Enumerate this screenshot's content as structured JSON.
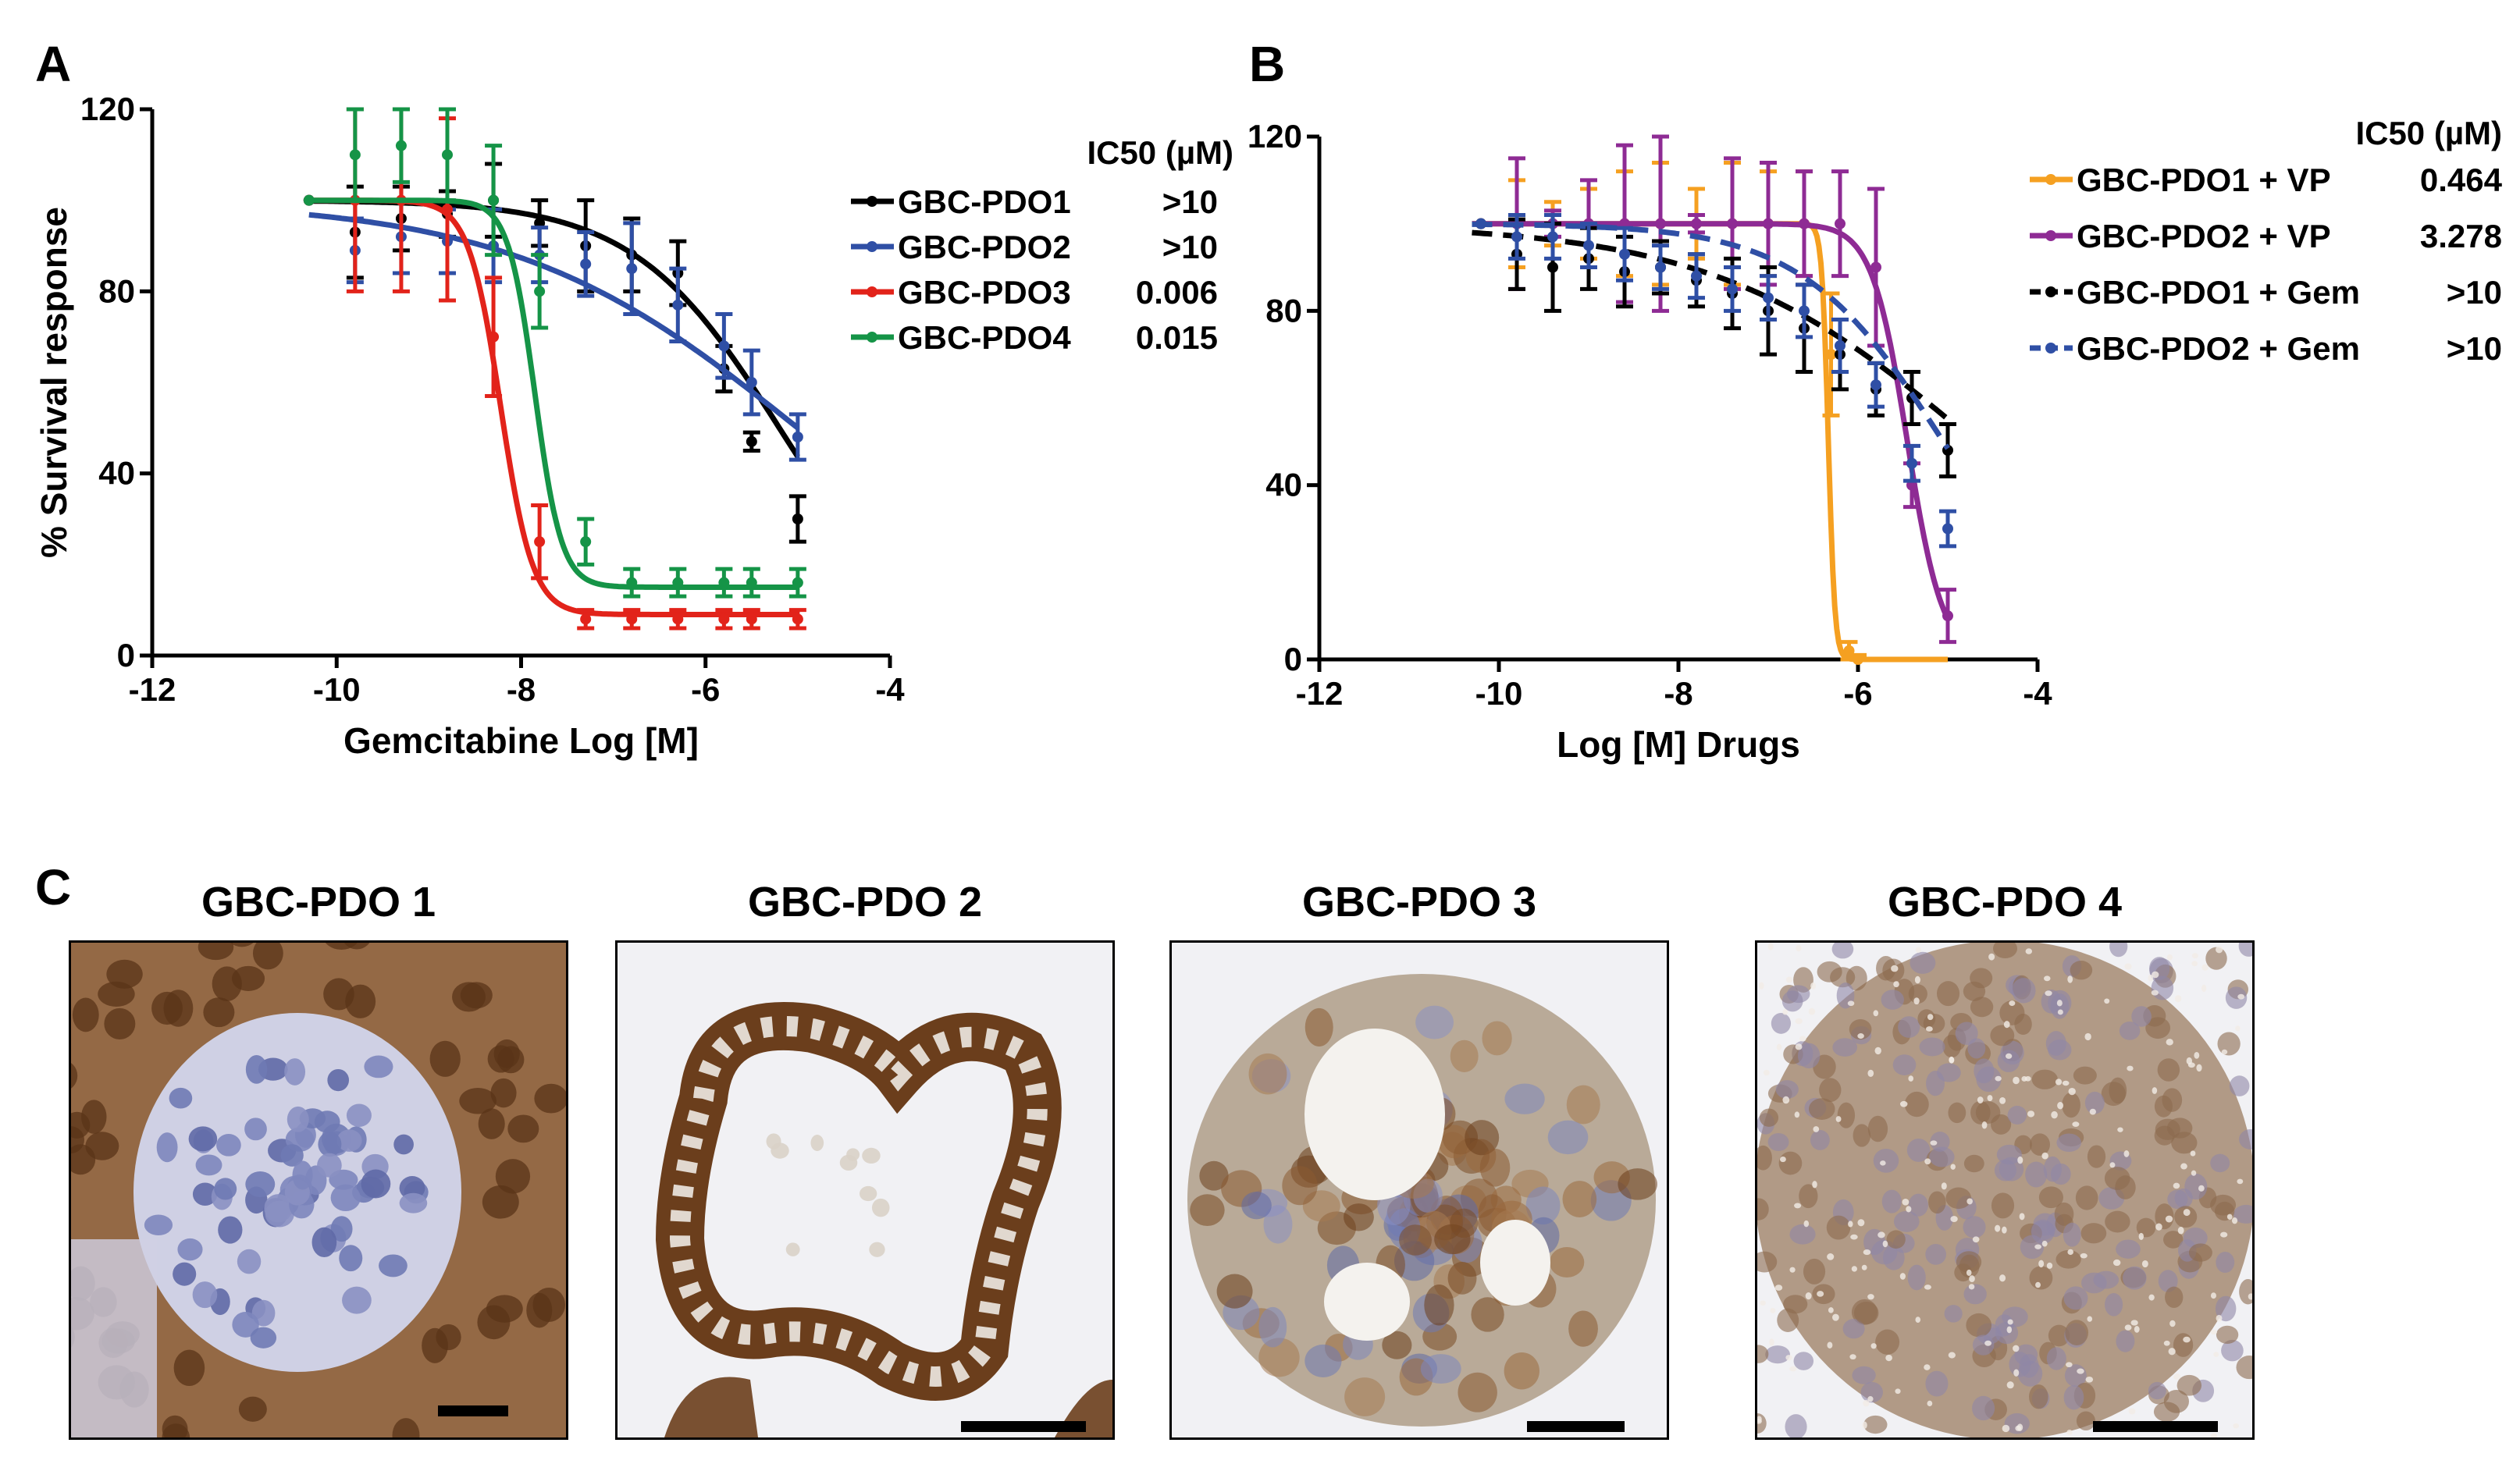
{
  "panel_letters": {
    "a": "A",
    "b": "B",
    "c": "C"
  },
  "chart_data": [
    {
      "type": "line",
      "panel": "A",
      "ylabel": "% Survival response",
      "xlabel": "Gemcitabine Log [M]",
      "xlim": [
        -12,
        -4
      ],
      "ylim": [
        0,
        120
      ],
      "xticks": [
        "-12",
        "-10",
        "-8",
        "-6",
        "-4"
      ],
      "yticks": [
        "0",
        "40",
        "80",
        "120"
      ],
      "legend_header": "IC50 (µM)",
      "legend_position": "right",
      "series": [
        {
          "name": "GBC-PDO1",
          "ic50": ">10",
          "color": "#000000",
          "dash": false,
          "x": [
            -10.3,
            -9.8,
            -9.3,
            -8.8,
            -8.3,
            -7.8,
            -7.3,
            -6.8,
            -6.3,
            -5.8,
            -5.5,
            -5.0
          ],
          "y": [
            100,
            93,
            96,
            97,
            100,
            95,
            90,
            88,
            84,
            63,
            47,
            30
          ],
          "err": [
            0,
            10,
            7,
            5,
            8,
            5,
            10,
            8,
            7,
            5,
            2,
            5
          ],
          "fit": {
            "bottom": 0,
            "top": 100,
            "logec50": -5.2,
            "hill": -0.55
          }
        },
        {
          "name": "GBC-PDO2",
          "ic50": ">10",
          "color": "#2f4fa5",
          "dash": false,
          "x": [
            -10.3,
            -9.8,
            -9.3,
            -8.8,
            -8.3,
            -7.8,
            -7.3,
            -6.8,
            -6.3,
            -5.8,
            -5.5,
            -5.0
          ],
          "y": [
            100,
            89,
            92,
            91,
            90,
            88,
            86,
            85,
            77,
            68,
            60,
            48
          ],
          "err": [
            0,
            7,
            8,
            7,
            8,
            6,
            7,
            10,
            8,
            7,
            7,
            5
          ],
          "fit": {
            "bottom": 0,
            "top": 100,
            "logec50": -5.0,
            "hill": -0.28
          }
        },
        {
          "name": "GBC-PDO3",
          "ic50": "0.006",
          "color": "#e2231a",
          "dash": false,
          "x": [
            -10.3,
            -9.8,
            -9.3,
            -8.8,
            -8.3,
            -7.8,
            -7.3,
            -6.8,
            -6.3,
            -5.8,
            -5.5,
            -5.0
          ],
          "y": [
            100,
            100,
            100,
            98,
            70,
            25,
            8,
            8,
            8,
            8,
            8,
            8
          ],
          "err": [
            0,
            20,
            20,
            20,
            13,
            8,
            2,
            2,
            2,
            2,
            2,
            2
          ],
          "fit": {
            "bottom": 9,
            "top": 100,
            "logec50": -8.22,
            "hill": -2.5
          }
        },
        {
          "name": "GBC-PDO4",
          "ic50": "0.015",
          "color": "#159447",
          "dash": false,
          "x": [
            -10.3,
            -9.8,
            -9.3,
            -8.8,
            -8.3,
            -7.8,
            -7.3,
            -6.8,
            -6.3,
            -5.8,
            -5.5,
            -5.0
          ],
          "y": [
            100,
            110,
            112,
            110,
            100,
            80,
            25,
            16,
            16,
            16,
            16,
            16
          ],
          "err": [
            0,
            10,
            8,
            10,
            12,
            8,
            5,
            3,
            3,
            3,
            3,
            3
          ],
          "fit": {
            "bottom": 15,
            "top": 100,
            "logec50": -7.85,
            "hill": -3
          }
        }
      ]
    },
    {
      "type": "line",
      "panel": "B",
      "ylabel": "% Survival response",
      "xlabel": "Log [M] Drugs",
      "xlim": [
        -12,
        -4
      ],
      "ylim": [
        0,
        120
      ],
      "xticks": [
        "-12",
        "-10",
        "-8",
        "-6",
        "-4"
      ],
      "yticks": [
        "0",
        "40",
        "80",
        "120"
      ],
      "legend_header": "IC50 (µM)",
      "legend_position": "top-right",
      "series": [
        {
          "name": "GBC-PDO1 + VP",
          "ic50": "0.464",
          "color": "#f5a021",
          "dash": false,
          "x": [
            -10.2,
            -9.8,
            -9.4,
            -9.0,
            -8.6,
            -8.2,
            -7.8,
            -7.4,
            -7.0,
            -6.6,
            -6.3,
            -6.1,
            -6.0
          ],
          "y": [
            100,
            100,
            100,
            100,
            100,
            100,
            100,
            100,
            100,
            100,
            70,
            2,
            0
          ],
          "err": [
            0,
            10,
            5,
            8,
            12,
            14,
            8,
            14,
            12,
            12,
            14,
            2,
            1
          ],
          "fit": {
            "bottom": 0,
            "top": 100,
            "logec50": -6.33,
            "hill": -12
          }
        },
        {
          "name": "GBC-PDO2 + VP",
          "ic50": "3.278",
          "color": "#8e2b94",
          "dash": false,
          "x": [
            -10.2,
            -9.8,
            -9.4,
            -9.0,
            -8.6,
            -8.2,
            -7.8,
            -7.4,
            -7.0,
            -6.6,
            -6.2,
            -5.8,
            -5.4,
            -5.0
          ],
          "y": [
            100,
            100,
            100,
            100,
            100,
            100,
            100,
            100,
            100,
            100,
            100,
            90,
            40,
            10
          ],
          "err": [
            0,
            15,
            3,
            10,
            18,
            20,
            2,
            15,
            14,
            12,
            12,
            18,
            5,
            6
          ],
          "fit": {
            "bottom": 0,
            "top": 100,
            "logec50": -5.45,
            "hill": -2.2
          }
        },
        {
          "name": "GBC-PDO1 + Gem",
          "ic50": ">10",
          "color": "#000000",
          "dash": true,
          "x": [
            -10.2,
            -9.8,
            -9.4,
            -9.0,
            -8.6,
            -8.2,
            -7.8,
            -7.4,
            -7.0,
            -6.6,
            -6.2,
            -5.8,
            -5.4,
            -5.0
          ],
          "y": [
            100,
            93,
            90,
            92,
            89,
            90,
            87,
            84,
            80,
            76,
            70,
            62,
            60,
            48
          ],
          "err": [
            0,
            8,
            10,
            7,
            8,
            6,
            6,
            8,
            10,
            10,
            8,
            6,
            6,
            6
          ],
          "fit": {
            "bottom": 0,
            "top": 100,
            "logec50": -4.7,
            "hill": -0.3
          }
        },
        {
          "name": "GBC-PDO2 + Gem",
          "ic50": ">10",
          "color": "#2f4fa5",
          "dash": true,
          "x": [
            -10.2,
            -9.8,
            -9.4,
            -9.0,
            -8.6,
            -8.2,
            -7.8,
            -7.4,
            -7.0,
            -6.6,
            -6.2,
            -5.8,
            -5.4,
            -5.0
          ],
          "y": [
            100,
            97,
            97,
            95,
            93,
            90,
            88,
            85,
            83,
            80,
            72,
            63,
            45,
            30
          ],
          "err": [
            0,
            5,
            5,
            5,
            6,
            5,
            5,
            5,
            5,
            6,
            6,
            5,
            4,
            4
          ],
          "fit": {
            "bottom": 0,
            "top": 100,
            "logec50": -5.05,
            "hill": -0.55
          }
        }
      ]
    }
  ],
  "ihc_panels": [
    {
      "title": "GBC-PDO 1",
      "style": "cytoplasm-strong"
    },
    {
      "title": "GBC-PDO 2",
      "style": "ring"
    },
    {
      "title": "GBC-PDO 3",
      "style": "mixed"
    },
    {
      "title": "GBC-PDO 4",
      "style": "dense"
    }
  ],
  "colors": {
    "brown_stain": "#8a5a32",
    "hematoxylin": "#6f7ab4",
    "background": "#f1f1f4"
  }
}
